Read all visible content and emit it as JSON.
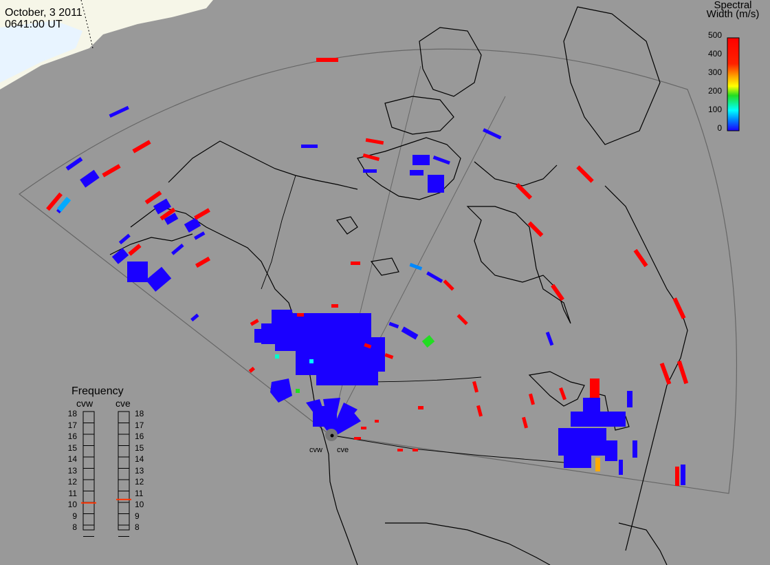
{
  "header": {
    "date": "October, 3 2011",
    "time": "0641:00 UT"
  },
  "colorbar": {
    "title_line1": "Spectral",
    "title_line2": "Width (m/s)",
    "ticks": [
      "500",
      "400",
      "300",
      "200",
      "100",
      "0"
    ],
    "colors": [
      "#ff0000",
      "#ffaa00",
      "#ffff00",
      "#00dd00",
      "#00ffff",
      "#0044ff",
      "#1a00ff"
    ]
  },
  "frequency_panel": {
    "title": "Frequency",
    "left_label": "cvw",
    "right_label": "cve",
    "scale": [
      "18",
      "17",
      "16",
      "15",
      "14",
      "13",
      "12",
      "11",
      "10",
      "9",
      "8"
    ],
    "cvw_mhz": 10.5,
    "cve_mhz": 10.8,
    "marker_color": "#ff3300"
  },
  "stations": [
    {
      "name": "cvw"
    },
    {
      "name": "cve"
    }
  ],
  "palette": {
    "background": "#999999",
    "ice": "#eef6ff",
    "low_width": "#1a00ff",
    "high_width": "#ff0000"
  }
}
